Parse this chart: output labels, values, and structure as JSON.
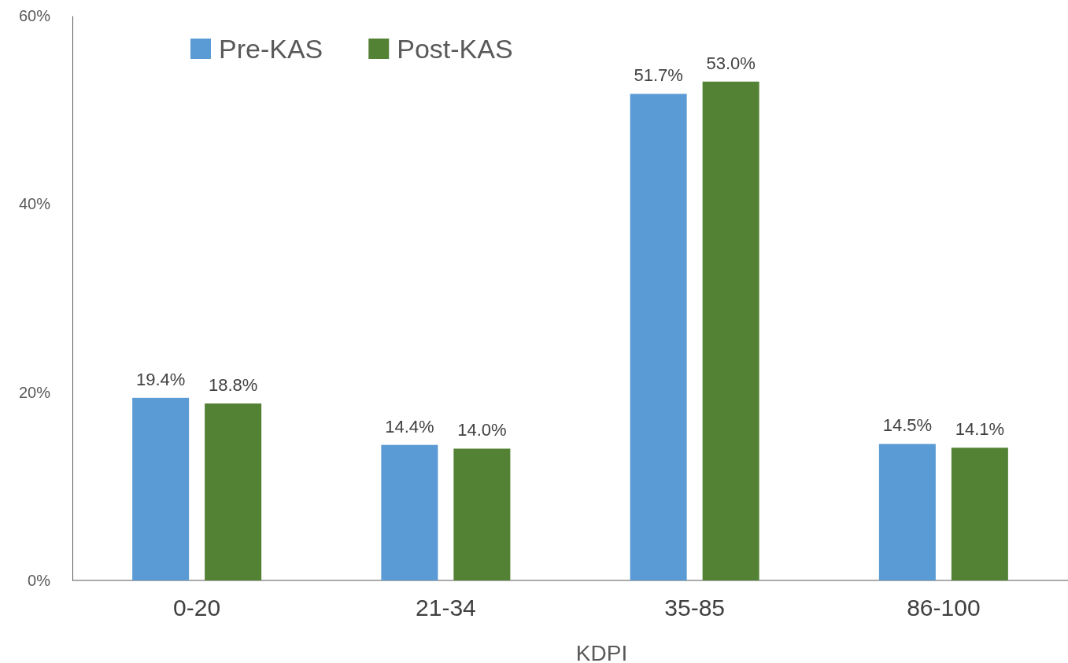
{
  "chart_data": {
    "type": "bar",
    "xlabel": "KDPI",
    "categories": [
      "0-20",
      "21-34",
      "35-85",
      "86-100"
    ],
    "series": [
      {
        "name": "Pre-KAS",
        "color": "#5b9bd5",
        "values": [
          19.4,
          14.4,
          51.7,
          14.5
        ],
        "value_labels": [
          "19.4%",
          "14.4%",
          "51.7%",
          "14.5%"
        ]
      },
      {
        "name": "Post-KAS",
        "color": "#548235",
        "values": [
          18.8,
          14.0,
          53.0,
          14.1
        ],
        "value_labels": [
          "18.8%",
          "14.0%",
          "53.0%",
          "14.1%"
        ]
      }
    ],
    "ylim": [
      0,
      60
    ],
    "yticks": [
      {
        "value": 0,
        "label": "0%"
      },
      {
        "value": 20,
        "label": "20%"
      },
      {
        "value": 40,
        "label": "40%"
      },
      {
        "value": 60,
        "label": "60%"
      }
    ],
    "legend": "top left",
    "grid": false
  }
}
